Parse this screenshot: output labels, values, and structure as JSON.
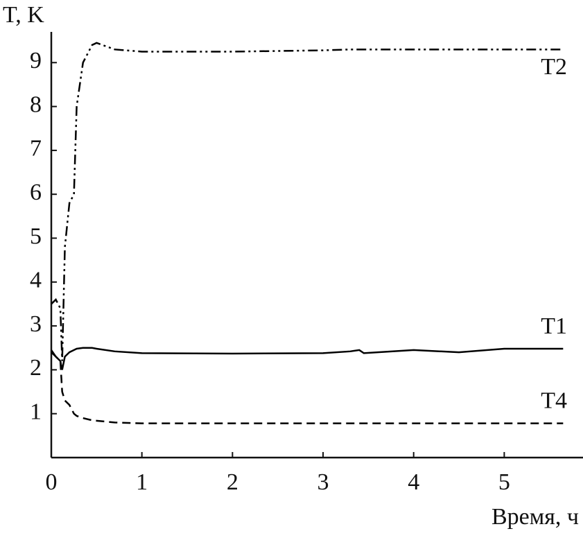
{
  "chart_data": {
    "type": "line",
    "y_label": "T, K",
    "x_label": "Время, ч",
    "x": [
      0,
      0.05,
      0.1,
      0.12,
      0.15,
      0.2,
      0.25,
      0.28,
      0.35,
      0.45,
      0.5,
      0.7,
      1,
      2,
      3,
      3.3,
      3.4,
      3.45,
      4,
      4.5,
      5,
      5.65
    ],
    "series": [
      {
        "name": "T2",
        "color": "#000000",
        "dash": "14 5 3 5 3 5",
        "values": [
          3.5,
          3.6,
          3.4,
          2.2,
          4.8,
          5.8,
          6.0,
          8.0,
          9.0,
          9.4,
          9.45,
          9.3,
          9.25,
          9.25,
          9.28,
          9.3,
          9.3,
          9.3,
          9.3,
          9.3,
          9.3,
          9.3
        ]
      },
      {
        "name": "T1",
        "color": "#000000",
        "dash": "none",
        "values": [
          2.45,
          2.3,
          2.2,
          2.0,
          2.3,
          2.4,
          2.45,
          2.48,
          2.5,
          2.5,
          2.48,
          2.42,
          2.38,
          2.37,
          2.38,
          2.42,
          2.45,
          2.38,
          2.45,
          2.4,
          2.48,
          2.48
        ]
      },
      {
        "name": "T4",
        "color": "#000000",
        "dash": "12 7",
        "values": [
          2.4,
          2.3,
          2.2,
          1.5,
          1.3,
          1.2,
          1.0,
          0.95,
          0.9,
          0.85,
          0.84,
          0.8,
          0.78,
          0.78,
          0.78,
          0.78,
          0.78,
          0.78,
          0.78,
          0.78,
          0.78,
          0.78
        ]
      }
    ],
    "xlim": [
      0,
      5.9
    ],
    "ylim": [
      0,
      9.7
    ],
    "xticks": [
      0,
      1,
      2,
      3,
      4,
      5
    ],
    "yticks": [
      1,
      2,
      3,
      4,
      5,
      6,
      7,
      8,
      9
    ],
    "grid": false
  }
}
